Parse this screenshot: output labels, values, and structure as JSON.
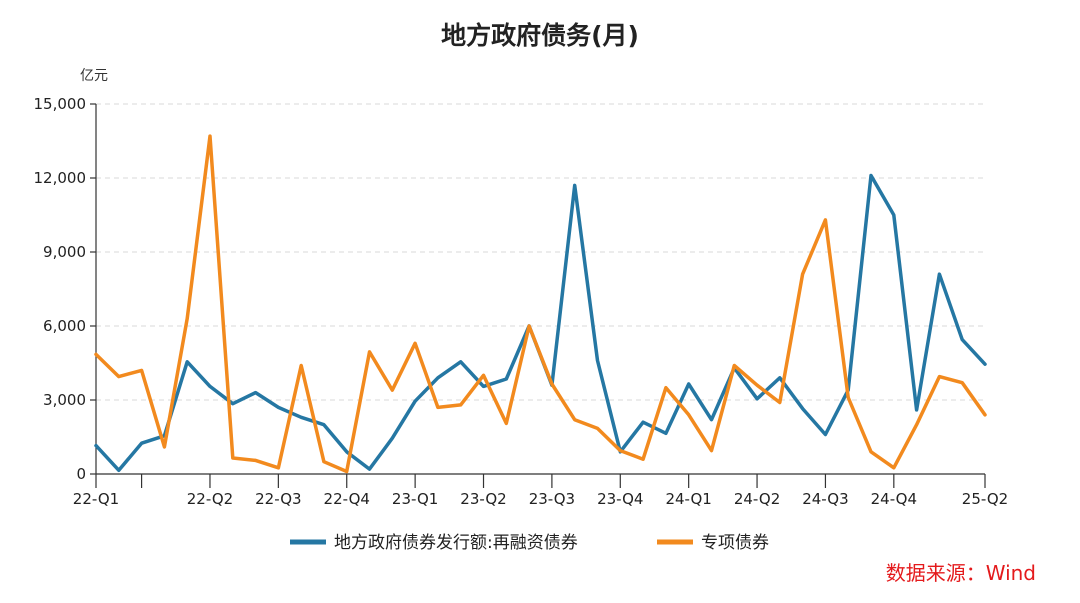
{
  "chart_data": {
    "type": "line",
    "title": "地方政府债务(月)",
    "ylabel": "亿元",
    "xlabel": "",
    "ylim": [
      0,
      15000
    ],
    "yticks": [
      "0",
      "3,000",
      "6,000",
      "9,000",
      "12,000",
      "15,000"
    ],
    "ytick_values": [
      0,
      3000,
      6000,
      9000,
      12000,
      15000
    ],
    "x_tick_labels": [
      {
        "index": 0,
        "label": "22-Q1"
      },
      {
        "index": 5,
        "label": "22-Q2"
      },
      {
        "index": 8,
        "label": "22-Q3"
      },
      {
        "index": 11,
        "label": "22-Q4"
      },
      {
        "index": 14,
        "label": "23-Q1"
      },
      {
        "index": 17,
        "label": "23-Q2"
      },
      {
        "index": 20,
        "label": "23-Q3"
      },
      {
        "index": 23,
        "label": "23-Q4"
      },
      {
        "index": 26,
        "label": "24-Q1"
      },
      {
        "index": 29,
        "label": "24-Q2"
      },
      {
        "index": 32,
        "label": "24-Q3"
      },
      {
        "index": 35,
        "label": "24-Q4"
      },
      {
        "index": 39,
        "label": "25-Q2"
      }
    ],
    "grid": true,
    "legend_position": "bottom",
    "series": [
      {
        "name": "地方政府债券发行额:再融资债券",
        "color": "#2577a3",
        "values": [
          1150,
          150,
          1250,
          1550,
          4550,
          3550,
          2850,
          3300,
          2700,
          2300,
          2000,
          900,
          200,
          1450,
          2950,
          3900,
          4550,
          3550,
          3850,
          6000,
          3600,
          11700,
          4600,
          900,
          2100,
          1650,
          3650,
          2200,
          4300,
          3050,
          3900,
          2650,
          1600,
          3400,
          12100,
          10500,
          2600,
          8100,
          5450,
          4450
        ]
      },
      {
        "name": "专项债券",
        "color": "#f28a1e",
        "values": [
          4850,
          3950,
          4200,
          1100,
          6300,
          13700,
          650,
          550,
          250,
          4400,
          500,
          100,
          4950,
          3400,
          5300,
          2700,
          2800,
          4000,
          2050,
          6000,
          3650,
          2200,
          1850,
          950,
          600,
          3500,
          2400,
          950,
          4400,
          3600,
          2900,
          8100,
          10300,
          3100,
          900,
          250,
          2000,
          3950,
          3700,
          2400
        ]
      }
    ]
  },
  "source_text": "数据来源：Wind"
}
